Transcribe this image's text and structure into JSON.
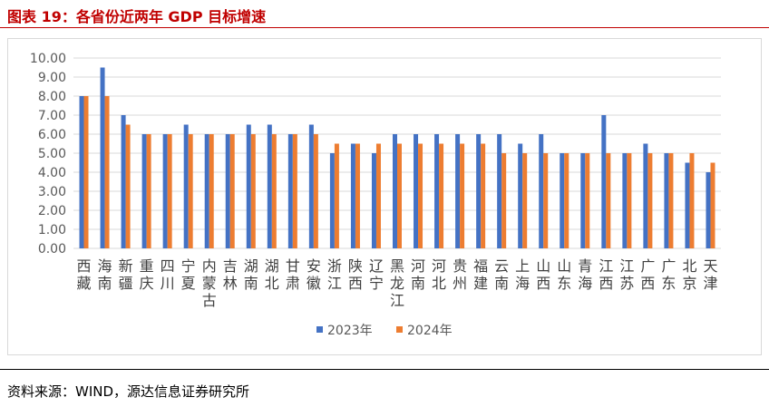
{
  "figure": {
    "title": "图表 19：各省份近两年 GDP 目标增速",
    "source": "资料来源：WIND，源达信息证券研究所"
  },
  "colors": {
    "title": "#c00000",
    "series_2023": "#4472c4",
    "series_2024": "#ed7d31"
  },
  "chart_data": {
    "type": "bar",
    "title": "",
    "xlabel": "",
    "ylabel": "",
    "ylim": [
      0,
      10
    ],
    "yticks": [
      "0.00",
      "1.00",
      "2.00",
      "3.00",
      "4.00",
      "5.00",
      "6.00",
      "7.00",
      "8.00",
      "9.00",
      "10.00"
    ],
    "grid": true,
    "legend_position": "bottom",
    "categories": [
      "西藏",
      "海南",
      "新疆",
      "重庆",
      "四川",
      "宁夏",
      "内蒙古",
      "吉林",
      "湖南",
      "湖北",
      "甘肃",
      "安徽",
      "浙江",
      "陕西",
      "辽宁",
      "黑龙江",
      "河南",
      "河北",
      "贵州",
      "福建",
      "云南",
      "上海",
      "山西",
      "山东",
      "青海",
      "江西",
      "江苏",
      "广西",
      "广东",
      "北京",
      "天津"
    ],
    "series": [
      {
        "name": "2023年",
        "values": [
          8,
          9.5,
          7,
          6,
          6,
          6.5,
          6,
          6,
          6.5,
          6.5,
          6,
          6.5,
          5,
          5.5,
          5,
          6,
          6,
          6,
          6,
          6,
          6,
          5.5,
          6,
          5,
          5,
          7,
          5,
          5.5,
          5,
          4.5,
          4
        ]
      },
      {
        "name": "2024年",
        "values": [
          8,
          8,
          6.5,
          6,
          6,
          6,
          6,
          6,
          6,
          6,
          6,
          6,
          5.5,
          5.5,
          5.5,
          5.5,
          5.5,
          5.5,
          5.5,
          5.5,
          5,
          5,
          5,
          5,
          5,
          5,
          5,
          5,
          5,
          5,
          4.5
        ]
      }
    ]
  }
}
